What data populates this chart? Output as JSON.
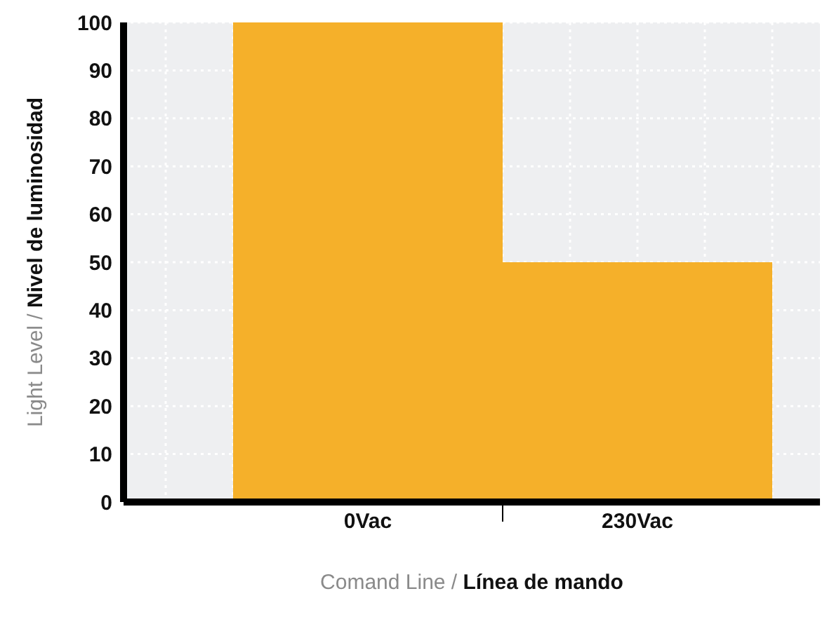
{
  "chart_data": {
    "type": "bar",
    "categories": [
      "0Vac",
      "230Vac"
    ],
    "values": [
      100,
      50
    ],
    "color": "#f5b02a",
    "xlabel": "Comand Line / Línea de mando",
    "ylabel": "Light Level / Nivel de luminosidad",
    "ylim": [
      0,
      100
    ],
    "yticks": [
      0,
      10,
      20,
      30,
      40,
      50,
      60,
      70,
      80,
      90,
      100
    ],
    "grid": true
  }
}
